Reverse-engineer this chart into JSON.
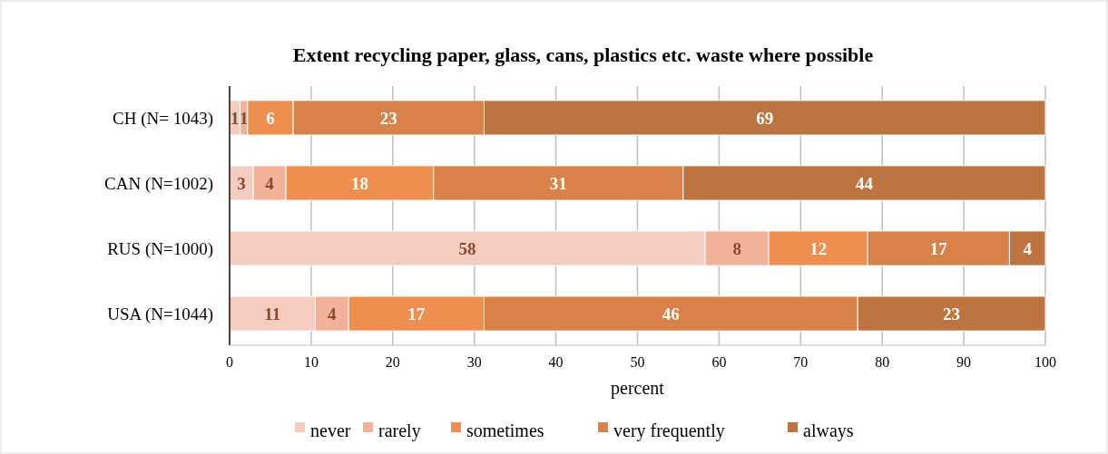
{
  "chart_data": {
    "type": "bar",
    "orientation": "horizontal",
    "stacked": true,
    "title": "Extent recycling  paper, glass, cans, plastics etc. waste where possible",
    "xlabel": "percent",
    "categories": [
      "CH (N= 1043)",
      "CAN (N=1002)",
      "RUS (N=1000)",
      "USA (N=1044)"
    ],
    "series": [
      {
        "name": "never",
        "color": "#f5cdc0",
        "values": [
          1.3,
          2.9,
          58.3,
          10.5
        ],
        "value_labels": [
          "1",
          "3",
          "58",
          "11"
        ]
      },
      {
        "name": "rarely",
        "color": "#f2b199",
        "values": [
          0.9,
          4.0,
          7.8,
          4.1
        ],
        "value_labels": [
          "1",
          "4",
          "8",
          "4"
        ]
      },
      {
        "name": "sometimes",
        "color": "#ee8f4f",
        "values": [
          5.6,
          18.1,
          12.1,
          16.6
        ],
        "value_labels": [
          "6",
          "18",
          "12",
          "17"
        ]
      },
      {
        "name": "very frequently",
        "color": "#d8824a",
        "values": [
          23.4,
          30.6,
          17.4,
          45.8
        ],
        "value_labels": [
          "23",
          "31",
          "17",
          "46"
        ]
      },
      {
        "name": "always",
        "color": "#bd7441",
        "values": [
          68.8,
          44.4,
          4.4,
          23.0
        ],
        "value_labels": [
          "69",
          "44",
          "4",
          "23"
        ]
      }
    ],
    "xlim": [
      0,
      100
    ],
    "xticks": [
      0,
      10,
      20,
      30,
      40,
      50,
      60,
      70,
      80,
      90,
      100
    ],
    "grid": "x",
    "legend": "bottom"
  }
}
